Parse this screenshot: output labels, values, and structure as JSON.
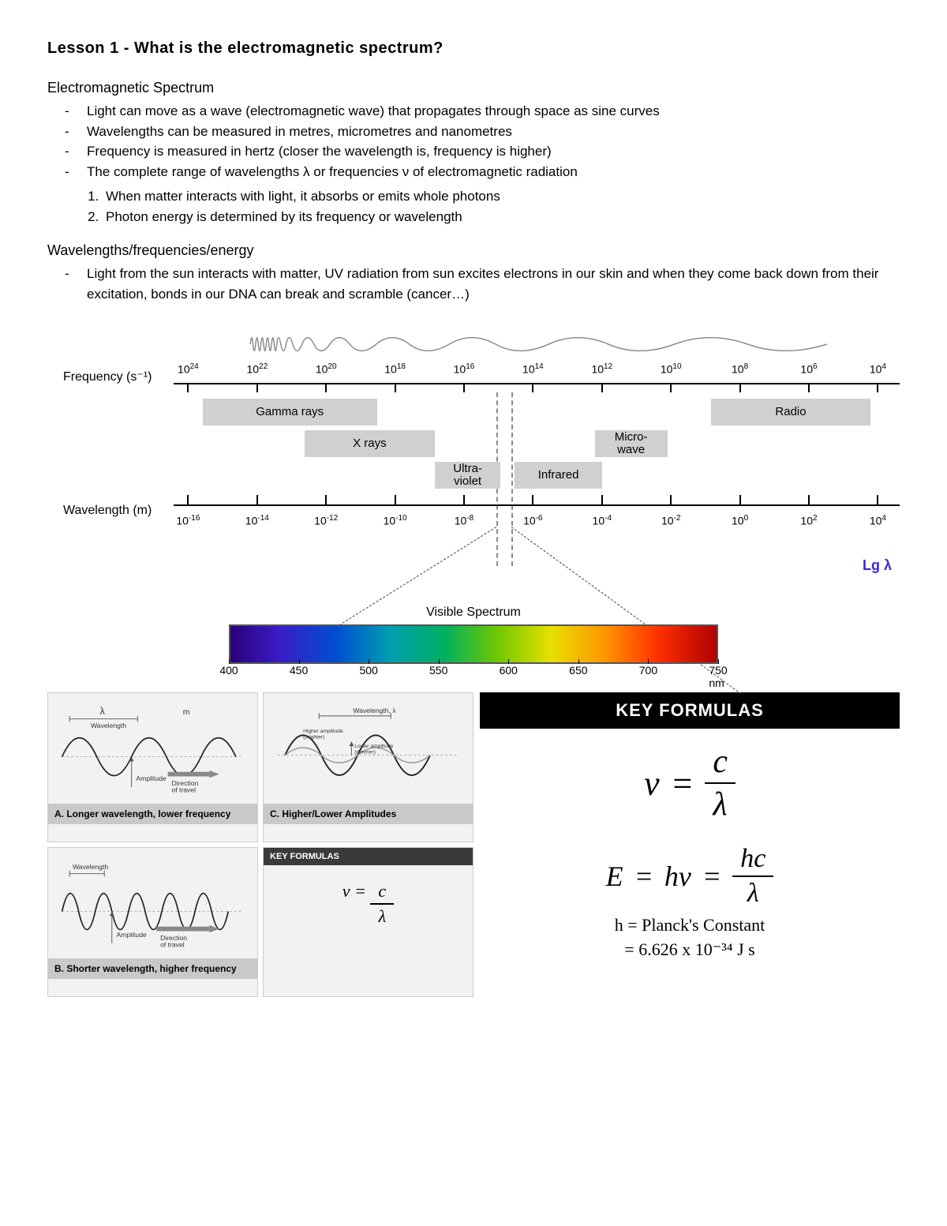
{
  "heading": "Lesson 1 - What is the electromagnetic spectrum?",
  "section1": {
    "title": "Electromagnetic Spectrum",
    "bullets": [
      "Light can move as a wave (electromagnetic wave) that propagates through space as sine curves",
      "Wavelengths can be measured in metres, micrometres and nanometres",
      "Frequency is measured in hertz (closer the wavelength is, frequency is higher)",
      "The complete range of wavelengths λ or frequencies ν of electromagnetic radiation"
    ],
    "numbered": [
      "When matter interacts with light, it absorbs or emits whole photons",
      "Photon energy is determined by its frequency or wavelength"
    ]
  },
  "section2": {
    "title": "Wavelengths/frequencies/energy",
    "bullets": [
      "Light from the sun interacts with matter, UV radiation from sun excites electrons in our skin and when they come back down from their excitation, bonds in our DNA can break and scramble (cancer…)"
    ]
  },
  "spectrum": {
    "freq_label": "Frequency (s⁻¹)",
    "wave_label": "Wavelength (m)",
    "freq_exponents": [
      "24",
      "22",
      "20",
      "18",
      "16",
      "14",
      "12",
      "10",
      "8",
      "6",
      "4"
    ],
    "wave_exponents": [
      "-16",
      "-14",
      "-12",
      "-10",
      "-8",
      "-6",
      "-4",
      "-2",
      "0",
      "2",
      "4"
    ],
    "bands": {
      "gamma": "Gamma rays",
      "xrays": "X rays",
      "uv": "Ultra-\nviolet",
      "ir": "Infrared",
      "micro": "Micro-\nwave",
      "radio": "Radio"
    },
    "lg_lambda": "Lg λ",
    "visible": {
      "title": "Visible Spectrum",
      "ticks": [
        "400",
        "450",
        "500",
        "550",
        "600",
        "650",
        "700",
        "750 nm"
      ]
    }
  },
  "panels": {
    "a": {
      "lambda": "λ",
      "m": "m",
      "wl": "Wavelength",
      "amp": "Amplitude",
      "dir": "Direction\nof travel",
      "caption": "A. Longer wavelength, lower frequency"
    },
    "b": {
      "wl": "Wavelength",
      "amp": "Amplitude",
      "dir": "Direction\nof travel",
      "caption": "B. Shorter wavelength, higher frequency"
    },
    "c": {
      "wl": "Wavelength, λ",
      "hi": "Higher amplitude (brighter)",
      "lo": "Lower amplitude (dimmer)",
      "caption": "C. Higher/Lower Amplitudes"
    },
    "d": {
      "hdr": "KEY FORMULAS"
    }
  },
  "key": {
    "hdr": "KEY FORMULAS",
    "nu": "ν",
    "eq": "=",
    "c": "c",
    "lambda": "λ",
    "E": "E",
    "h": "h",
    "hv": "hν",
    "hc": "hc",
    "planck1": "h  = Planck's Constant",
    "planck2": "= 6.626 x 10⁻³⁴ J s"
  }
}
